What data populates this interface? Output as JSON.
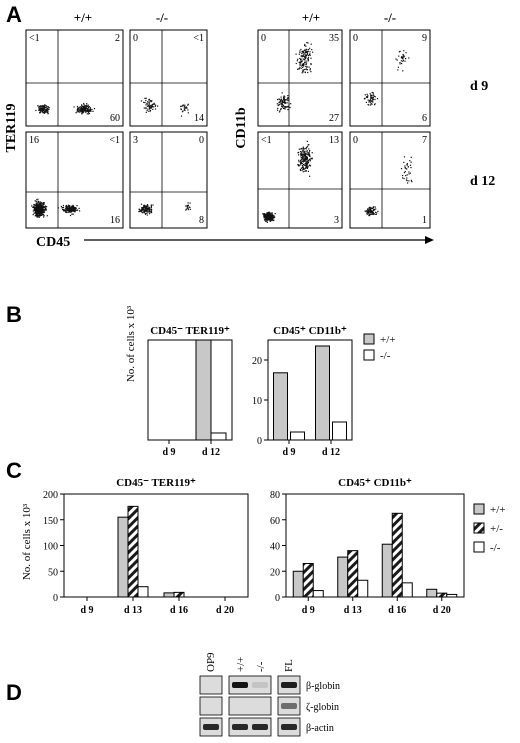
{
  "panel_letters": [
    "A",
    "B",
    "C",
    "D"
  ],
  "panel_a": {
    "left_cols": [
      "+/+",
      "-/-"
    ],
    "right_cols": [
      "+/+",
      "-/-"
    ],
    "left_ylabel": "TER119",
    "right_ylabel": "CD11b",
    "left_xlabel": "CD45",
    "row_labels": [
      "d 9",
      "d 12"
    ],
    "quadrant_values": [
      {
        "tl": "<1",
        "tr": "2",
        "br": "60"
      },
      {
        "tl": "0",
        "tr": "<1",
        "br": "14"
      },
      {
        "tl": "0",
        "tr": "35",
        "br": "27"
      },
      {
        "tl": "0",
        "tr": "9",
        "br": "6"
      },
      {
        "tl": "16",
        "tr": "<1",
        "br": "16"
      },
      {
        "tl": "3",
        "tr": "0",
        "br": "8"
      },
      {
        "tl": "<1",
        "tr": "13",
        "br": "3"
      },
      {
        "tl": "0",
        "tr": "7",
        "br": "1"
      }
    ]
  },
  "legend_b": [
    "+/+",
    "-/-"
  ],
  "legend_c": [
    "+/+",
    "+/-",
    "-/-"
  ],
  "colors": {
    "wt": "#c8c8c8",
    "ko": "#ffffff",
    "het_stripe": "#1a1a1a",
    "border": "#000000",
    "blot_bg": "#dcdcdc",
    "band": "#2a2a2a"
  },
  "chart_data": [
    {
      "type": "bar",
      "title": "CD45⁻ TER119⁺",
      "ylabel": "No. of cells x 10³",
      "categories": [
        "d 9",
        "d 12"
      ],
      "series": [
        {
          "name": "+/+",
          "values": [
            0,
            28.5
          ]
        },
        {
          "name": "-/-",
          "values": [
            0,
            2
          ]
        }
      ],
      "ylim": [
        0,
        28.5
      ],
      "yticks": [],
      "grid": false
    },
    {
      "type": "bar",
      "title": "CD45⁺ CD11b⁺",
      "ylabel": "",
      "categories": [
        "d 9",
        "d 12"
      ],
      "series": [
        {
          "name": "+/+",
          "values": [
            16.8,
            23.5
          ]
        },
        {
          "name": "-/-",
          "values": [
            2,
            4.5
          ]
        }
      ],
      "ylim": [
        0,
        25
      ],
      "yticks": [
        "0",
        "10",
        "20"
      ],
      "grid": false
    },
    {
      "type": "bar",
      "title": "CD45⁻ TER119⁺",
      "ylabel": "No. of cells x 10³",
      "categories": [
        "d 9",
        "d 13",
        "d 16",
        "d 20"
      ],
      "series": [
        {
          "name": "+/+",
          "values": [
            0,
            155,
            8,
            0
          ]
        },
        {
          "name": "+/-",
          "values": [
            0,
            176,
            9,
            0
          ]
        },
        {
          "name": "-/-",
          "values": [
            0,
            20,
            0,
            0
          ]
        }
      ],
      "ylim": [
        0,
        200
      ],
      "yticks": [
        "0",
        "50",
        "100",
        "150",
        "200"
      ],
      "grid": false
    },
    {
      "type": "bar",
      "title": "CD45⁺ CD11b⁺",
      "ylabel": "",
      "categories": [
        "d 9",
        "d 13",
        "d 16",
        "d 20"
      ],
      "series": [
        {
          "name": "+/+",
          "values": [
            20,
            31,
            41,
            6
          ]
        },
        {
          "name": "+/-",
          "values": [
            26,
            36,
            65,
            3
          ]
        },
        {
          "name": "-/-",
          "values": [
            5,
            13,
            11,
            2
          ]
        }
      ],
      "ylim": [
        0,
        80
      ],
      "yticks": [
        "0",
        "20",
        "40",
        "60",
        "80"
      ],
      "grid": false
    }
  ],
  "panel_d": {
    "lanes": [
      "OP9",
      "+/+",
      "-/-",
      "FL"
    ],
    "rows": [
      "β-globin",
      "ζ-globin",
      "β-actin"
    ],
    "band_intensity": [
      [
        0.0,
        1.0,
        0.12,
        0.95
      ],
      [
        0.0,
        0.0,
        0.0,
        0.55
      ],
      [
        0.9,
        0.9,
        0.9,
        0.9
      ]
    ]
  }
}
